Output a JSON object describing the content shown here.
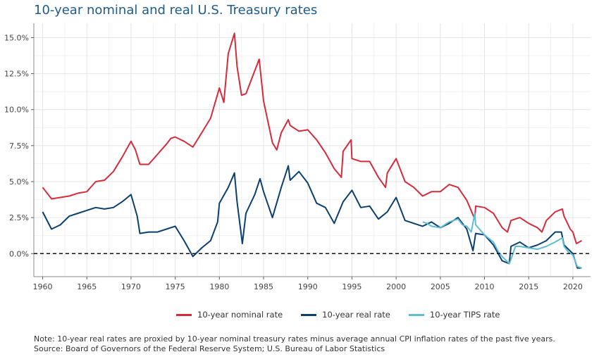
{
  "title": "10-year nominal and real U.S. Treasury rates",
  "note": "Note: 10-year real rates are proxied by 10-year nominal treasury rates minus average annual CPI inflation rates of the past five years.",
  "source": "Source: Board of Governors of the Federal Reserve System; U.S. Bureau of Labor Statistics",
  "chart_data": {
    "type": "line",
    "title": "10-year nominal and real U.S. Treasury rates",
    "xlabel": "",
    "ylabel": "",
    "xlim": [
      1959,
      2022
    ],
    "ylim": [
      -1.6,
      16.0
    ],
    "x_ticks": [
      1960,
      1965,
      1970,
      1975,
      1980,
      1985,
      1990,
      1995,
      2000,
      2005,
      2010,
      2015,
      2020
    ],
    "y_ticks": [
      0.0,
      2.5,
      5.0,
      7.5,
      10.0,
      12.5,
      15.0
    ],
    "y_tick_labels": [
      "0.0%",
      "2.5%",
      "5.0%",
      "7.5%",
      "10.0%",
      "12.5%",
      "15.0%"
    ],
    "grid": true,
    "reference_line": {
      "y": 0,
      "style": "dashed"
    },
    "legend_position": "bottom",
    "series": [
      {
        "name": "10-year nominal rate",
        "color": "#d62b3a",
        "x": [
          1960,
          1961,
          1962,
          1963,
          1964,
          1965,
          1966,
          1967,
          1968,
          1969,
          1970,
          1970.5,
          1971,
          1972,
          1973,
          1974,
          1974.5,
          1975,
          1976,
          1977,
          1978,
          1979,
          1980,
          1980.5,
          1981,
          1981.7,
          1982,
          1982.5,
          1983,
          1984,
          1984.5,
          1985,
          1986,
          1986.5,
          1987,
          1987.8,
          1988,
          1989,
          1990,
          1991,
          1992,
          1993,
          1993.8,
          1994,
          1994.9,
          1995,
          1996,
          1997,
          1998,
          1998.8,
          1999,
          2000,
          2001,
          2002,
          2003,
          2004,
          2005,
          2006,
          2007,
          2008,
          2008.9,
          2009,
          2010,
          2011,
          2012,
          2012.6,
          2013,
          2014,
          2015,
          2016,
          2016.5,
          2017,
          2018,
          2018.8,
          2019,
          2019.7,
          2020,
          2020.4,
          2021
        ],
        "y": [
          4.6,
          3.8,
          3.9,
          4.0,
          4.2,
          4.3,
          5.0,
          5.1,
          5.7,
          6.7,
          7.8,
          7.2,
          6.2,
          6.2,
          6.9,
          7.6,
          8.0,
          8.1,
          7.8,
          7.4,
          8.4,
          9.4,
          11.5,
          10.5,
          13.9,
          15.3,
          13.0,
          11.0,
          11.1,
          12.7,
          13.5,
          10.6,
          7.7,
          7.2,
          8.4,
          9.3,
          8.9,
          8.5,
          8.6,
          7.9,
          7.0,
          5.9,
          5.3,
          7.1,
          7.9,
          6.6,
          6.4,
          6.4,
          5.3,
          4.6,
          5.6,
          6.6,
          5.0,
          4.6,
          4.0,
          4.3,
          4.3,
          4.8,
          4.6,
          3.7,
          2.4,
          3.3,
          3.2,
          2.8,
          1.8,
          1.5,
          2.3,
          2.5,
          2.1,
          1.8,
          1.5,
          2.3,
          2.9,
          3.1,
          2.6,
          1.7,
          1.5,
          0.7,
          0.9
        ]
      },
      {
        "name": "10-year real rate",
        "color": "#0b3f6e",
        "x": [
          1960,
          1961,
          1962,
          1963,
          1964,
          1965,
          1966,
          1967,
          1968,
          1969,
          1970,
          1970.7,
          1971,
          1972,
          1973,
          1974,
          1975,
          1976,
          1977,
          1978,
          1979,
          1979.8,
          1980,
          1981,
          1981.7,
          1982,
          1982.6,
          1983,
          1984,
          1984.6,
          1985,
          1986,
          1987,
          1987.8,
          1988,
          1989,
          1990,
          1991,
          1992,
          1993,
          1994,
          1995,
          1996,
          1997,
          1998,
          1999,
          2000,
          2001,
          2002,
          2003,
          2004,
          2005,
          2006,
          2007,
          2008,
          2008.7,
          2009,
          2010,
          2011,
          2012,
          2012.8,
          2013,
          2014,
          2015,
          2016,
          2017,
          2018,
          2018.7,
          2019,
          2020,
          2020.5,
          2021
        ],
        "y": [
          2.9,
          1.7,
          2.0,
          2.6,
          2.8,
          3.0,
          3.2,
          3.1,
          3.2,
          3.6,
          4.1,
          2.6,
          1.4,
          1.5,
          1.5,
          1.7,
          1.9,
          0.9,
          -0.2,
          0.4,
          0.9,
          2.2,
          3.5,
          4.6,
          5.6,
          3.6,
          0.7,
          2.8,
          4.1,
          5.2,
          4.3,
          2.5,
          4.6,
          6.1,
          5.1,
          5.7,
          4.9,
          3.5,
          3.2,
          2.1,
          3.6,
          4.4,
          3.2,
          3.3,
          2.4,
          2.9,
          3.9,
          2.3,
          2.1,
          1.9,
          2.2,
          1.8,
          2.1,
          2.5,
          1.7,
          0.2,
          1.4,
          1.3,
          0.6,
          -0.5,
          -0.7,
          0.5,
          0.8,
          0.4,
          0.6,
          0.9,
          1.5,
          1.5,
          0.6,
          0.0,
          -1.0,
          -1.0
        ]
      },
      {
        "name": "10-year TIPS rate",
        "color": "#5fbcd3",
        "x": [
          2003,
          2003.5,
          2004,
          2005,
          2006,
          2007,
          2007.5,
          2008,
          2008.5,
          2008.9,
          2009,
          2010,
          2011,
          2011.6,
          2012,
          2012.8,
          2013,
          2013.5,
          2014,
          2015,
          2016,
          2017,
          2018,
          2018.8,
          2019,
          2019.5,
          2020,
          2020.5,
          2021
        ],
        "y": [
          2.2,
          2.1,
          1.9,
          1.8,
          2.2,
          2.4,
          2.0,
          1.9,
          1.5,
          2.8,
          2.0,
          1.3,
          0.8,
          0.1,
          -0.2,
          -0.7,
          -0.4,
          0.5,
          0.5,
          0.4,
          0.3,
          0.5,
          0.8,
          1.1,
          0.5,
          0.1,
          -0.1,
          -0.9,
          -1.0
        ]
      }
    ]
  }
}
